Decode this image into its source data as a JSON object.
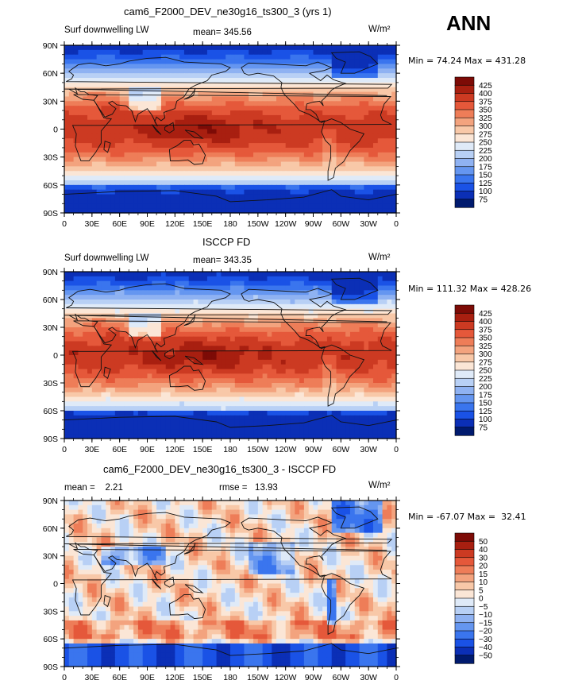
{
  "season": "ANN",
  "colors": {
    "frame": "#000000",
    "land_outline": "#111111",
    "pos_scale": [
      "#001a6e",
      "#0b2fb6",
      "#1a52e6",
      "#3a75ee",
      "#6596f0",
      "#8fb2f2",
      "#b8d0f5",
      "#dfeaf8",
      "#fbe6d6",
      "#f8c8a8",
      "#f3a37e",
      "#ee7d58",
      "#e5583a",
      "#cc3a22",
      "#a81f10",
      "#7d0b06"
    ],
    "diff_scale": [
      "#001a6e",
      "#0b2fb6",
      "#1a52e6",
      "#3a75ee",
      "#6596f0",
      "#8fb2f2",
      "#b8d0f5",
      "#dfeaf8",
      "#fbe6d6",
      "#f8c8a8",
      "#f3a37e",
      "#ee7d58",
      "#e5583a",
      "#cc3a22",
      "#a81f10",
      "#7d0b06"
    ]
  },
  "chart_data": [
    {
      "type": "heatmap",
      "id": "model",
      "title": "cam6_F2000_DEV_ne30g16_ts300_3 (yrs 1)",
      "subtitle_left": "Surf downwelling LW",
      "subtitle_center": "mean= 345.56",
      "units": "W/m²",
      "stats": "Min =  74.24 Max = 431.28",
      "xlabel": "",
      "ylabel": "",
      "xticks": [
        "0",
        "30E",
        "60E",
        "90E",
        "120E",
        "150E",
        "180",
        "150W",
        "120W",
        "90W",
        "60W",
        "30W",
        "0"
      ],
      "yticks": [
        "90N",
        "60N",
        "30N",
        "0",
        "30S",
        "60S",
        "90S"
      ],
      "xlim": [
        0,
        360
      ],
      "ylim": [
        -90,
        90
      ],
      "colorbar_levels": [
        "425",
        "400",
        "375",
        "350",
        "325",
        "300",
        "275",
        "250",
        "225",
        "200",
        "175",
        "150",
        "125",
        "100",
        "75"
      ]
    },
    {
      "type": "heatmap",
      "id": "obs",
      "title": "ISCCP FD",
      "subtitle_left": "Surf downwelling LW",
      "subtitle_center": "mean= 343.35",
      "units": "W/m²",
      "stats": "Min = 111.32 Max = 428.26",
      "xlabel": "",
      "ylabel": "",
      "xticks": [
        "0",
        "30E",
        "60E",
        "90E",
        "120E",
        "150E",
        "180",
        "150W",
        "120W",
        "90W",
        "60W",
        "30W",
        "0"
      ],
      "yticks": [
        "90N",
        "60N",
        "30N",
        "0",
        "30S",
        "60S",
        "90S"
      ],
      "xlim": [
        0,
        360
      ],
      "ylim": [
        -90,
        90
      ],
      "colorbar_levels": [
        "425",
        "400",
        "375",
        "350",
        "325",
        "300",
        "275",
        "250",
        "225",
        "200",
        "175",
        "150",
        "125",
        "100",
        "75"
      ]
    },
    {
      "type": "heatmap",
      "id": "diff",
      "title": "cam6_F2000_DEV_ne30g16_ts300_3 - ISCCP FD",
      "subtitle_left": "mean =    2.21",
      "subtitle_center": "rmse =   13.93",
      "units": "W/m²",
      "stats": "Min = -67.07 Max =  32.41",
      "xlabel": "",
      "ylabel": "",
      "xticks": [
        "0",
        "30E",
        "60E",
        "90E",
        "120E",
        "150E",
        "180",
        "150W",
        "120W",
        "90W",
        "60W",
        "30W",
        "0"
      ],
      "yticks": [
        "90N",
        "60N",
        "30N",
        "0",
        "30S",
        "60S",
        "90S"
      ],
      "xlim": [
        0,
        360
      ],
      "ylim": [
        -90,
        90
      ],
      "colorbar_levels": [
        "50",
        "40",
        "30",
        "20",
        "15",
        "10",
        "5",
        "0",
        "−5",
        "−10",
        "−15",
        "−20",
        "−30",
        "−40",
        "−50"
      ]
    }
  ]
}
